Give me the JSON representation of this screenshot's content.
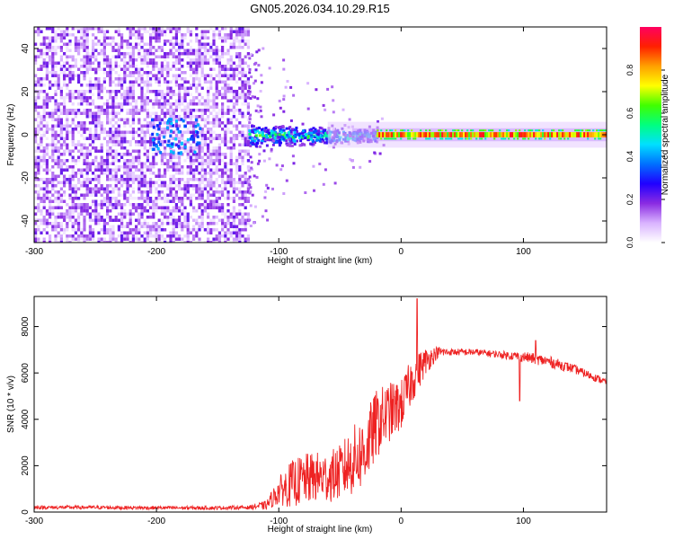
{
  "figure_title": "GN05.2026.034.10.29.R15",
  "chart_data": [
    {
      "type": "heatmap",
      "name": "spectrogram",
      "title": "",
      "xlabel": "Height of straight line (km)",
      "ylabel": "Frequency (Hz)",
      "xlim": [
        -300,
        168
      ],
      "ylim": [
        -50,
        50
      ],
      "xticks": [
        -300,
        -200,
        -100,
        0,
        100
      ],
      "yticks": [
        -40,
        -20,
        0,
        20,
        40
      ],
      "colorbar": {
        "label": "Normalized spectral amplitude",
        "range": [
          0,
          1
        ],
        "ticks": [
          "0.0",
          "0.2",
          "0.4",
          "0.6",
          "0.8"
        ],
        "colormap": [
          "#ffffff",
          "#d9b3ff",
          "#8a2be2",
          "#2000ff",
          "#0070ff",
          "#00e0ff",
          "#00ff80",
          "#40ff00",
          "#ffff00",
          "#ffa000",
          "#ff2000",
          "#ff0060"
        ]
      },
      "regions": [
        {
          "desc": "broadband noise",
          "x": [
            -300,
            -125
          ],
          "freq": [
            -50,
            50
          ],
          "amplitude": 0.15
        },
        {
          "desc": "noise burst",
          "x": [
            -205,
            -165
          ],
          "freq": [
            -8,
            8
          ],
          "amplitude": 0.3
        },
        {
          "desc": "emerging carrier",
          "x": [
            -125,
            -20
          ],
          "freq": [
            -6,
            6
          ],
          "amplitude": 0.45
        },
        {
          "desc": "strong carrier",
          "x": [
            -20,
            168
          ],
          "freq": [
            -1.5,
            1.5
          ],
          "amplitude": 0.95
        }
      ]
    },
    {
      "type": "line",
      "name": "snr",
      "title": "",
      "xlabel": "Height of straight line (km)",
      "ylabel": "SNR (10 * v/v)",
      "xlim": [
        -300,
        168
      ],
      "ylim": [
        0,
        9300
      ],
      "xticks": [
        -300,
        -200,
        -100,
        0,
        100
      ],
      "yticks": [
        0,
        2000,
        4000,
        6000,
        8000
      ],
      "line_color": "#ee2222",
      "series": [
        {
          "name": "SNR",
          "x": [
            -300,
            -250,
            -200,
            -150,
            -125,
            -110,
            -100,
            -90,
            -80,
            -70,
            -60,
            -50,
            -40,
            -30,
            -20,
            -10,
            0,
            10,
            20,
            30,
            40,
            60,
            80,
            100,
            120,
            140,
            168
          ],
          "values": [
            200,
            200,
            180,
            180,
            200,
            300,
            900,
            1200,
            1400,
            1500,
            1500,
            1700,
            2200,
            2600,
            3800,
            4300,
            4600,
            5800,
            6500,
            6900,
            6900,
            6900,
            6800,
            6700,
            6500,
            6200,
            5600
          ],
          "noise": [
            80,
            80,
            80,
            80,
            80,
            200,
            600,
            1000,
            1100,
            1100,
            1100,
            1200,
            1500,
            1600,
            1500,
            1300,
            1100,
            1000,
            600,
            250,
            150,
            150,
            150,
            220,
            250,
            200,
            150
          ]
        }
      ],
      "annotations": [
        {
          "x": 13,
          "value": 9200,
          "desc": "peak spike"
        },
        {
          "x": 97,
          "value": 4800,
          "desc": "dropout"
        },
        {
          "x": 110,
          "value": 7400,
          "desc": "spike"
        }
      ]
    }
  ]
}
